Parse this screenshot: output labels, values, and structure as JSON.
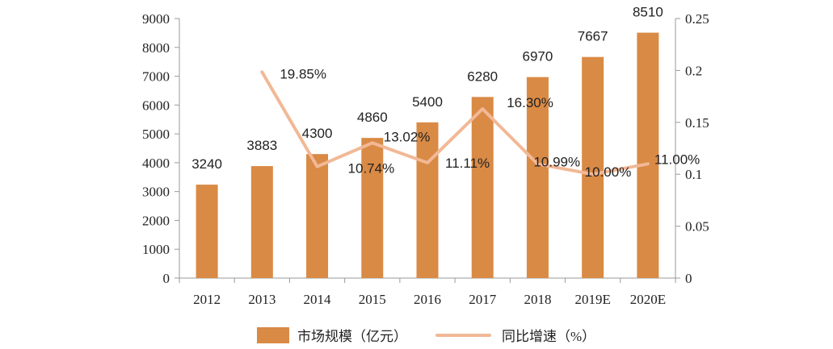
{
  "chart_data": {
    "type": "bar",
    "categories": [
      "2012",
      "2013",
      "2014",
      "2015",
      "2016",
      "2017",
      "2018",
      "2019E",
      "2020E"
    ],
    "series": [
      {
        "name": "市场规模（亿元）",
        "type": "bar",
        "axis": "left",
        "values": [
          3240,
          3883,
          4300,
          4860,
          5400,
          6280,
          6970,
          7667,
          8510
        ],
        "labels": [
          "3240",
          "3883",
          "4300",
          "4860",
          "5400",
          "6280",
          "6970",
          "7667",
          "8510"
        ],
        "color": "#D98A45"
      },
      {
        "name": "同比增速（%）",
        "type": "line",
        "axis": "right",
        "values": [
          null,
          0.1985,
          0.1074,
          0.1302,
          0.1111,
          0.163,
          0.1099,
          0.1,
          0.11
        ],
        "labels": [
          "",
          "19.85%",
          "10.74%",
          "13.02%",
          "11.11%",
          "16.30%",
          "10.99%",
          "10.00%",
          "11.00%"
        ],
        "color": "#F2B896"
      }
    ],
    "yAxisLeft": {
      "min": 0,
      "max": 9000,
      "ticks": [
        "0",
        "1000",
        "2000",
        "3000",
        "4000",
        "5000",
        "6000",
        "7000",
        "8000",
        "9000"
      ]
    },
    "yAxisRight": {
      "min": 0,
      "max": 0.25,
      "ticks": [
        "0",
        "0.05",
        "0.1",
        "0.15",
        "0.2",
        "0.25"
      ]
    },
    "grid": false,
    "legend": {
      "position": "bottom-center",
      "items": [
        {
          "text": "市场规模（亿元）"
        },
        {
          "text_main": "同比增速",
          "text_paren": "（%）"
        }
      ]
    }
  }
}
